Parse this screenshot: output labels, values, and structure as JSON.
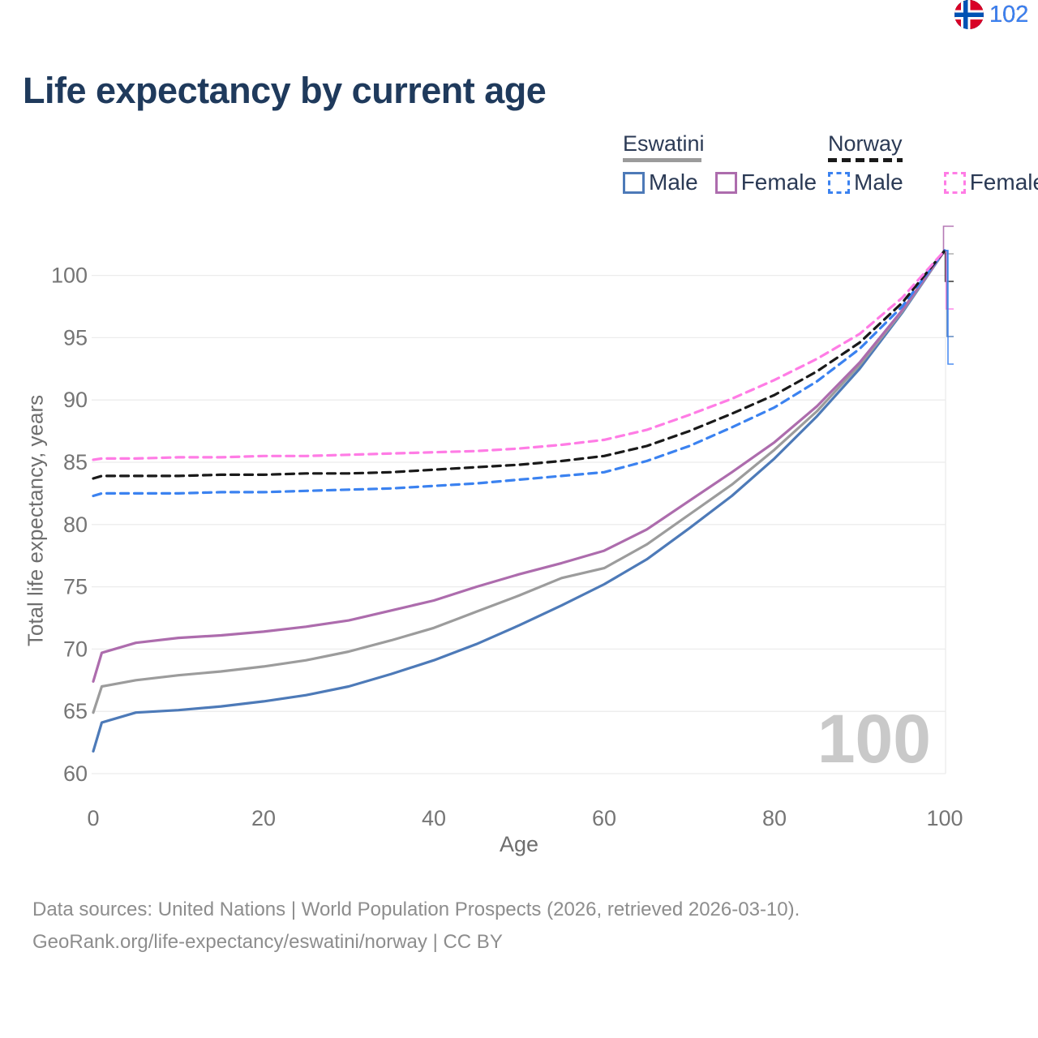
{
  "title": "Life expectancy by current age",
  "legend": {
    "groups": [
      {
        "label": "Eswatini",
        "underline_style": "solid",
        "underline_color": "#9b9b9b",
        "items": [
          {
            "label": "Male",
            "color": "#4d7ab8",
            "dash": "solid"
          },
          {
            "label": "Female",
            "color": "#ad6cad",
            "dash": "solid"
          }
        ]
      },
      {
        "label": "Norway",
        "underline_style": "dashed",
        "underline_color": "#1a1a1a",
        "items": [
          {
            "label": "Male",
            "color": "#3b82f0",
            "dash": "dashed"
          },
          {
            "label": "Female",
            "color": "#ff7ce5",
            "dash": "dashed"
          }
        ]
      }
    ]
  },
  "chart_data": {
    "type": "line",
    "title": "Life expectancy by current age",
    "xlabel": "Age",
    "ylabel": "Total life expectancy, years",
    "xlim": [
      0,
      100
    ],
    "ylim": [
      60,
      100
    ],
    "xticks": [
      0,
      20,
      40,
      60,
      80,
      100
    ],
    "yticks": [
      60,
      65,
      70,
      75,
      80,
      85,
      90,
      95,
      100
    ],
    "grid": "horizontal",
    "x": [
      0,
      1,
      5,
      10,
      15,
      20,
      25,
      30,
      35,
      40,
      45,
      50,
      55,
      60,
      65,
      70,
      75,
      80,
      85,
      90,
      95,
      100
    ],
    "series": [
      {
        "name": "Eswatini Male",
        "color": "#4d7ab8",
        "dash": "solid",
        "values": [
          61.8,
          64.1,
          64.9,
          65.1,
          65.4,
          65.8,
          66.3,
          67.0,
          68.0,
          69.1,
          70.4,
          71.9,
          73.5,
          75.2,
          77.2,
          79.7,
          82.3,
          85.3,
          88.7,
          92.5,
          97.0,
          102
        ]
      },
      {
        "name": "Eswatini",
        "color": "#9c9c9c",
        "dash": "solid",
        "values": [
          64.9,
          67.0,
          67.5,
          67.9,
          68.2,
          68.6,
          69.1,
          69.8,
          70.7,
          71.7,
          73.0,
          74.3,
          75.7,
          76.5,
          78.4,
          80.8,
          83.2,
          86.0,
          89.1,
          92.8,
          97.1,
          102
        ]
      },
      {
        "name": "Eswatini Female",
        "color": "#ad6cad",
        "dash": "solid",
        "values": [
          67.4,
          69.7,
          70.5,
          70.9,
          71.1,
          71.4,
          71.8,
          72.3,
          73.1,
          73.9,
          75.0,
          76.0,
          76.9,
          77.9,
          79.6,
          81.9,
          84.2,
          86.6,
          89.5,
          93.0,
          97.2,
          102
        ]
      },
      {
        "name": "Norway Male",
        "color": "#3b82f0",
        "dash": "dashed",
        "values": [
          82.3,
          82.5,
          82.5,
          82.5,
          82.6,
          82.6,
          82.7,
          82.8,
          82.9,
          83.1,
          83.3,
          83.6,
          83.9,
          84.2,
          85.1,
          86.3,
          87.8,
          89.4,
          91.5,
          94.1,
          97.5,
          102
        ]
      },
      {
        "name": "Norway",
        "color": "#1a1a1a",
        "dash": "dashed",
        "values": [
          83.7,
          83.9,
          83.9,
          83.9,
          84.0,
          84.0,
          84.1,
          84.1,
          84.2,
          84.4,
          84.6,
          84.8,
          85.1,
          85.5,
          86.3,
          87.5,
          88.9,
          90.4,
          92.3,
          94.6,
          97.8,
          102
        ]
      },
      {
        "name": "Norway Female",
        "color": "#ff7ce5",
        "dash": "dashed",
        "values": [
          85.2,
          85.3,
          85.3,
          85.4,
          85.4,
          85.5,
          85.5,
          85.6,
          85.7,
          85.8,
          85.9,
          86.1,
          86.4,
          86.8,
          87.6,
          88.8,
          90.1,
          91.6,
          93.3,
          95.3,
          98.2,
          102
        ]
      }
    ],
    "end_labels": [
      {
        "series": "Eswatini Female",
        "flag": "eswatini",
        "value": "102",
        "color": "#ad6cad"
      },
      {
        "series": "Eswatini",
        "flag": "eswatini",
        "value": "102",
        "color": "#a8a8a8"
      },
      {
        "series": "Norway",
        "flag": "norway",
        "value": "102",
        "color": "#1f1f1f"
      },
      {
        "series": "Norway Female",
        "flag": "norway",
        "value": "102",
        "color": "#ff7ce5"
      },
      {
        "series": "Eswatini Male",
        "flag": "eswatini",
        "value": "102",
        "color": "#4d7ab8"
      },
      {
        "series": "Norway Male",
        "flag": "norway",
        "value": "102",
        "color": "#3b82f0"
      }
    ],
    "age_cursor": "100"
  },
  "footer": {
    "line1": "Data sources: United Nations | World Population Prospects (2026, retrieved 2026-03-10).",
    "line2": "GeoRank.org/life-expectancy/eswatini/norway | CC BY"
  },
  "colors": {
    "title": "#1f3a5c",
    "axis_text": "#757575",
    "axis_title": "#6e6e6e",
    "gridline": "#ececec",
    "watermark": "#c9c9c9",
    "footer_text": "#8d8d8d"
  }
}
